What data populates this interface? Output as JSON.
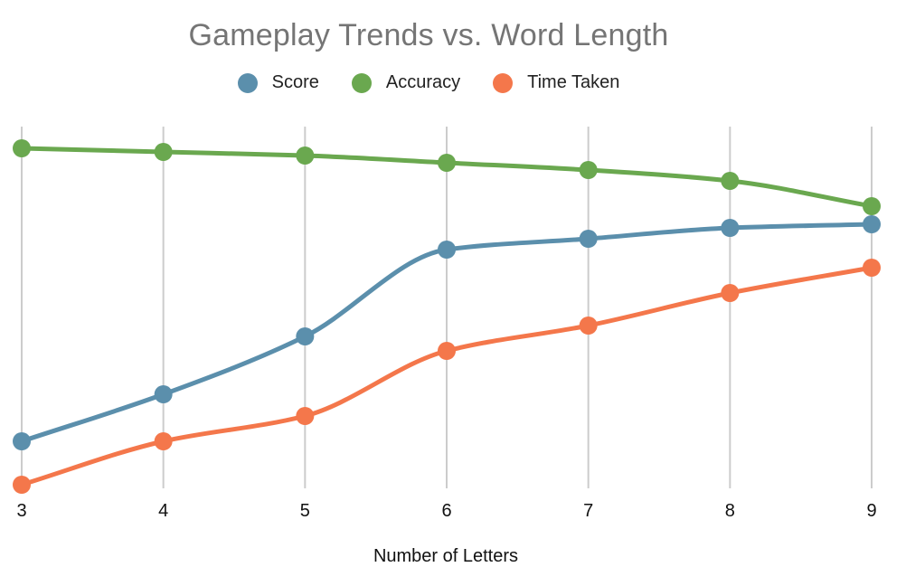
{
  "chart_data": {
    "type": "line",
    "title": "Gameplay Trends vs. Word Length",
    "xlabel": "Number of Letters",
    "ylabel": "",
    "x": [
      3,
      4,
      5,
      6,
      7,
      8,
      9
    ],
    "x_tick_labels": [
      "3",
      "4",
      "5",
      "6",
      "7",
      "8",
      "9"
    ],
    "ylim": [
      0,
      100
    ],
    "grid": "vertical",
    "legend_position": "top",
    "series": [
      {
        "name": "Score",
        "color": "#5b8fac",
        "values": [
          13,
          26,
          42,
          66,
          69,
          72,
          73
        ]
      },
      {
        "name": "Accuracy",
        "color": "#6aa84f",
        "values": [
          94,
          93,
          92,
          90,
          88,
          85,
          78
        ]
      },
      {
        "name": "Time Taken",
        "color": "#f4774b",
        "values": [
          1,
          13,
          20,
          38,
          45,
          54,
          61
        ]
      }
    ]
  }
}
